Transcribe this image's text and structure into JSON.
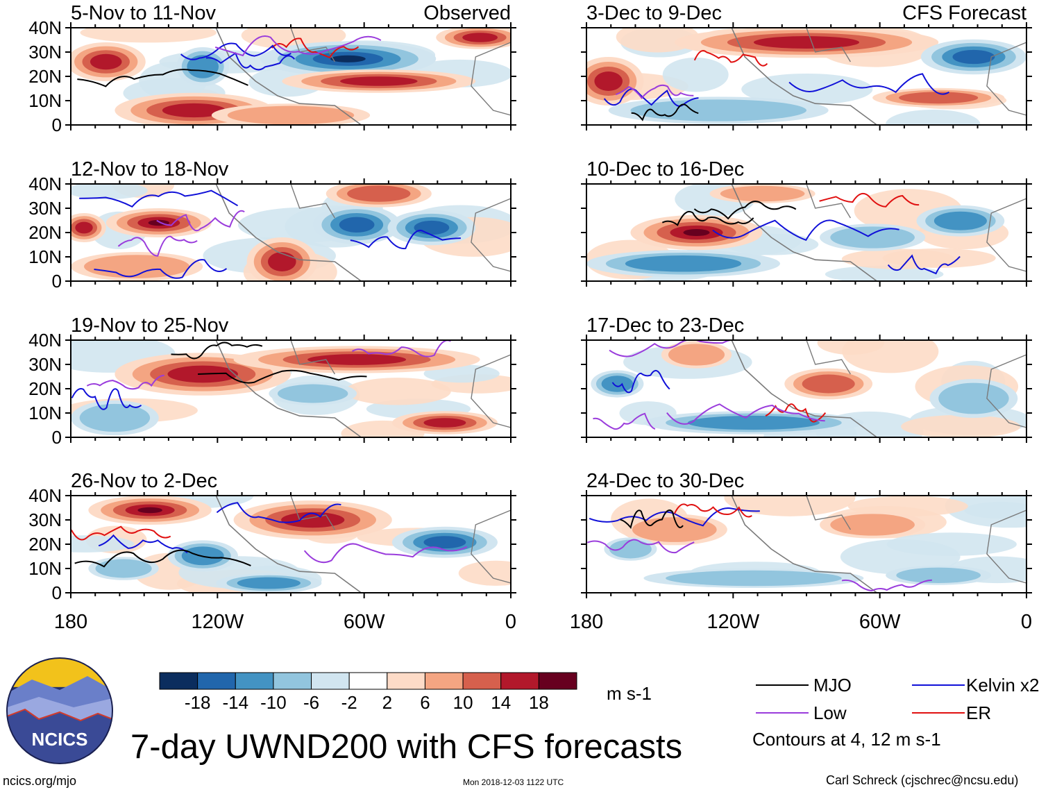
{
  "colors": {
    "mjo": "#000000",
    "kelvin": "#1010d8",
    "low": "#9a3cdc",
    "er": "#e01010",
    "land": "#7a7a7a",
    "logo_navy": "#243069"
  },
  "chart_data": {
    "type": "heatmap",
    "title": "7-day UWND200 with CFS forecasts",
    "units": "m s-1",
    "x_ticks": [
      "180",
      "120W",
      "60W",
      "0"
    ],
    "y_ticks": [
      "40N",
      "30N",
      "20N",
      "10N",
      "0"
    ],
    "xlim": [
      -180,
      0
    ],
    "ylim": [
      0,
      40
    ],
    "colorbar": {
      "ticks": [
        "-18",
        "-14",
        "-10",
        "-6",
        "-2",
        "2",
        "6",
        "10",
        "14",
        "18"
      ],
      "colors": [
        "#0b2d5e",
        "#2166ac",
        "#4393c3",
        "#92c5de",
        "#d1e5f0",
        "#ffffff",
        "#fddbc7",
        "#f4a582",
        "#d6604d",
        "#b2182b",
        "#67001f"
      ]
    },
    "observed_label": "Observed",
    "forecast_label": "CFS Forecast",
    "observed_panels": [
      {
        "title": "5-Nov to 11-Nov"
      },
      {
        "title": "12-Nov to 18-Nov"
      },
      {
        "title": "19-Nov to 25-Nov"
      },
      {
        "title": "26-Nov to 2-Dec"
      }
    ],
    "forecast_panels": [
      {
        "title": "3-Dec to 9-Dec"
      },
      {
        "title": "10-Dec to 16-Dec"
      },
      {
        "title": "17-Dec to 23-Dec"
      },
      {
        "title": "24-Dec to 30-Dec"
      }
    ],
    "legend": [
      {
        "label": "MJO",
        "color": "#000000"
      },
      {
        "label": "Kelvin x2",
        "color": "#1010d8"
      },
      {
        "label": "Low",
        "color": "#9a3cdc"
      },
      {
        "label": "ER",
        "color": "#e01010"
      }
    ],
    "contour_note": "Contours at 4, 12 m s-1"
  },
  "footer": {
    "logo_text": "NCICS",
    "website": "ncics.org/mjo",
    "timestamp": "Mon 2018-12-03 1122 UTC",
    "author": "Carl Schreck (cjschrec@ncsu.edu)"
  }
}
